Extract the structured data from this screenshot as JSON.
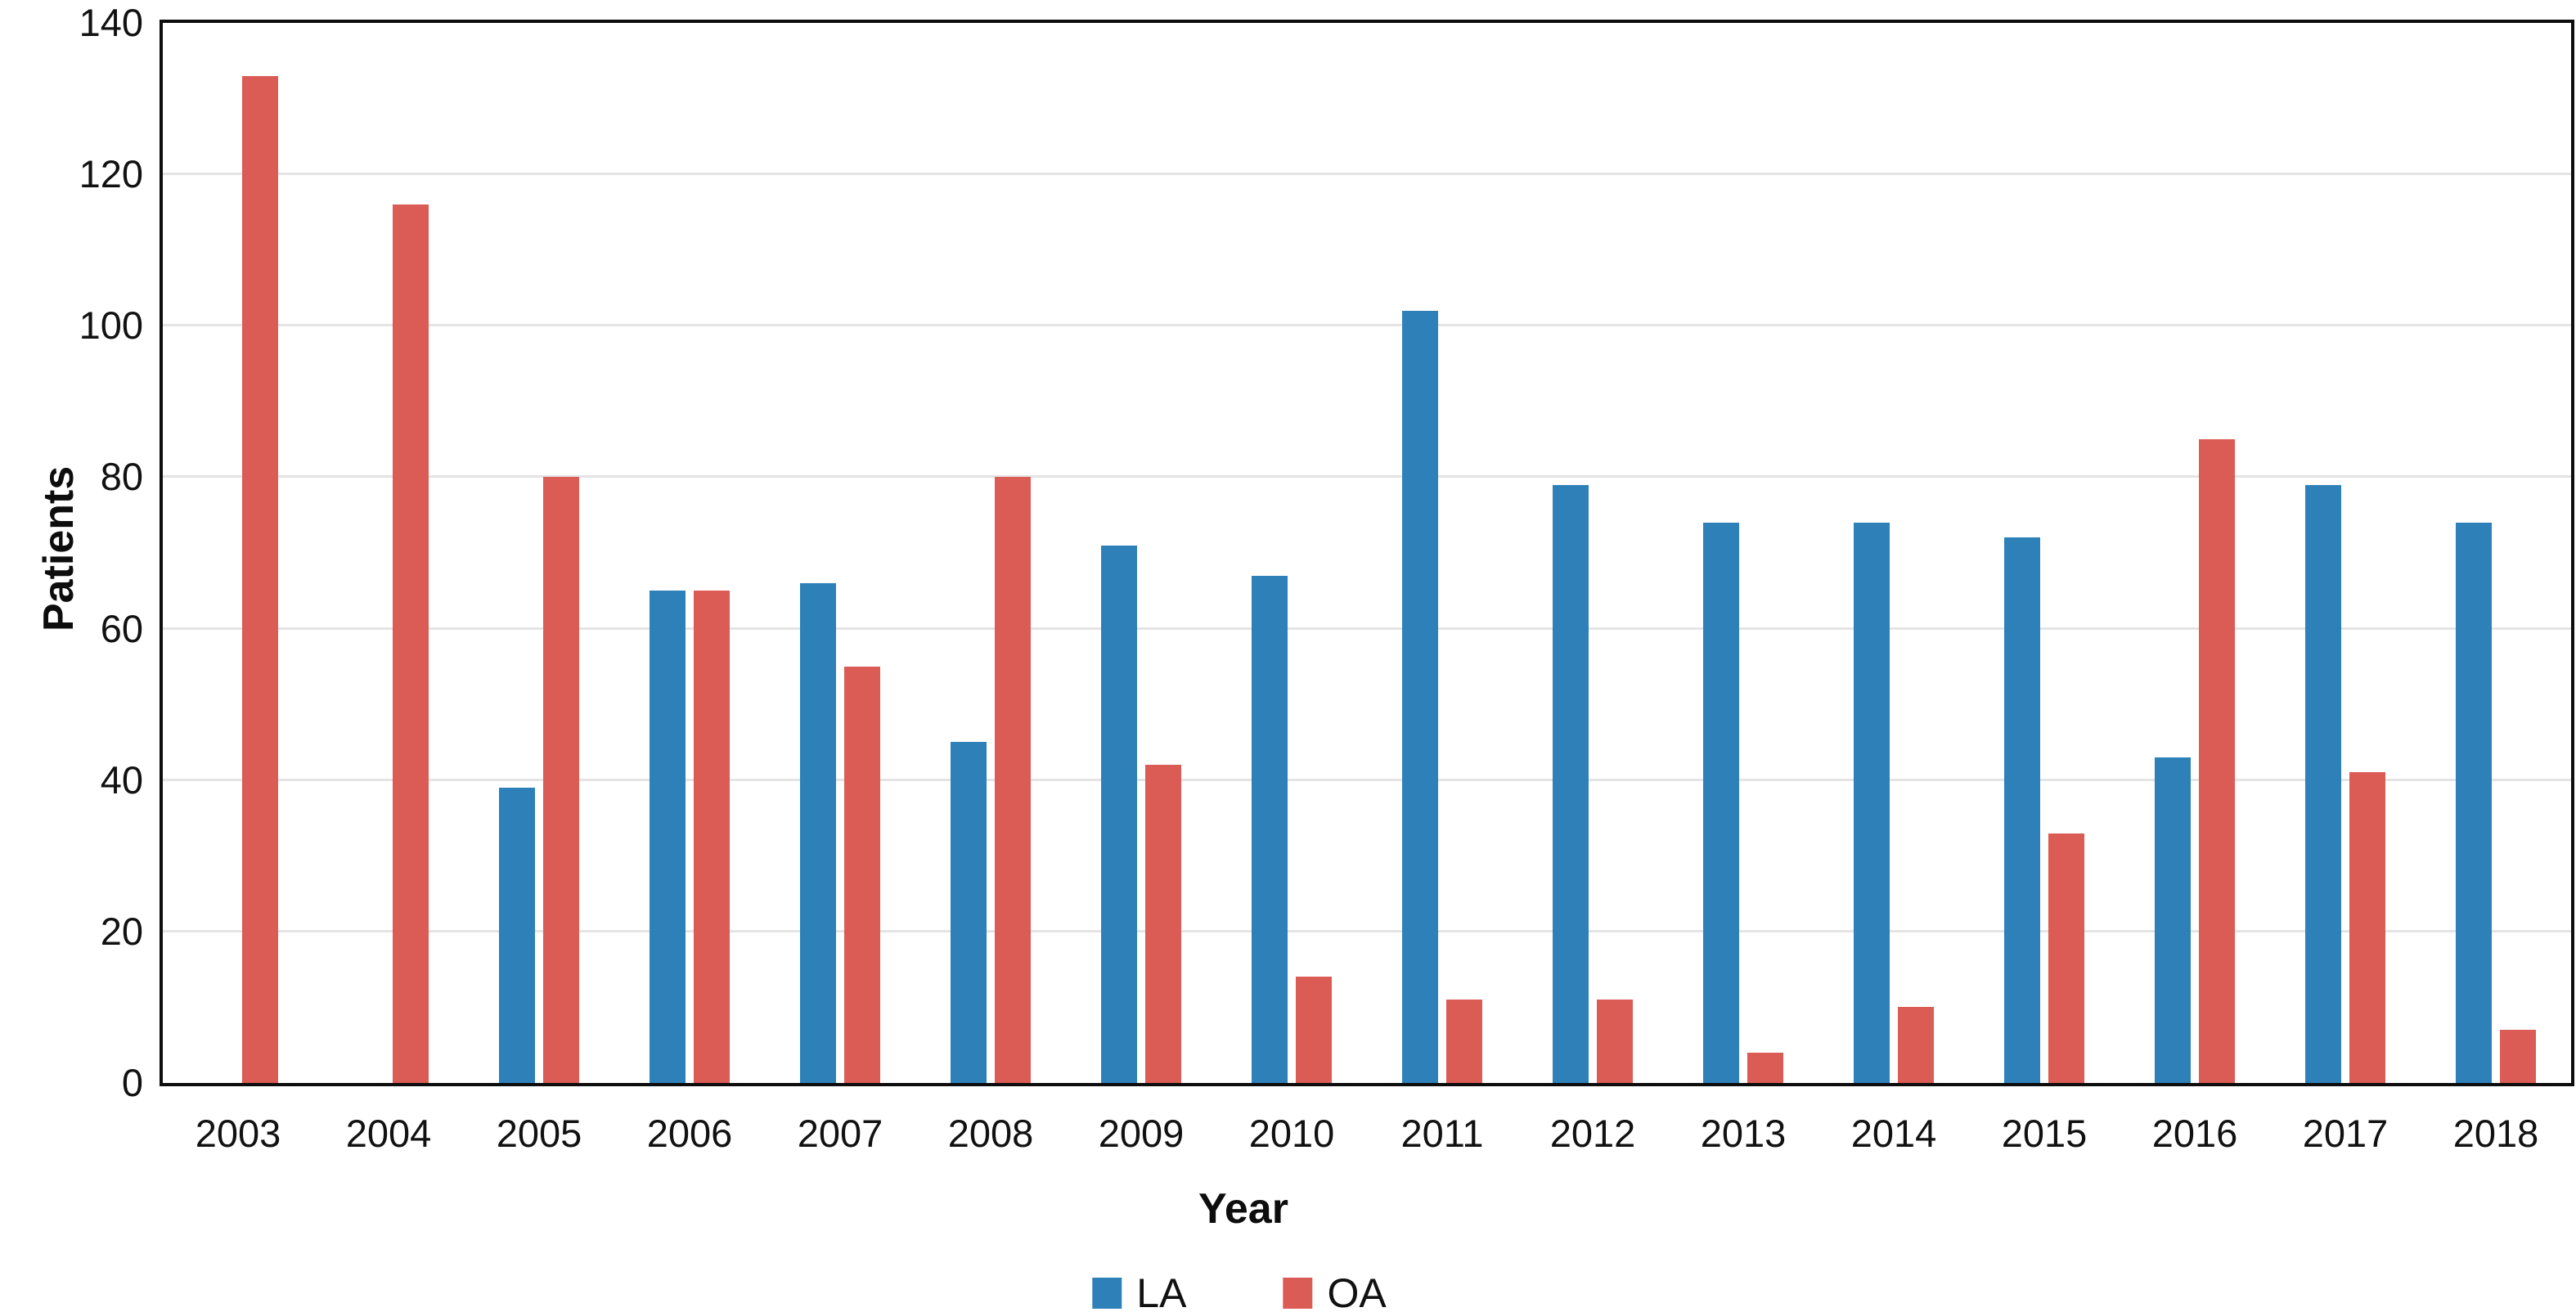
{
  "chart_data": {
    "type": "bar",
    "title": "",
    "xlabel": "Year",
    "ylabel": "Patients",
    "categories": [
      "2003",
      "2004",
      "2005",
      "2006",
      "2007",
      "2008",
      "2009",
      "2010",
      "2011",
      "2012",
      "2013",
      "2014",
      "2015",
      "2016",
      "2017",
      "2018"
    ],
    "series": [
      {
        "name": "LA",
        "color": "#2E80B8",
        "values": [
          null,
          null,
          39,
          65,
          66,
          45,
          71,
          67,
          102,
          79,
          74,
          74,
          72,
          43,
          79,
          74
        ]
      },
      {
        "name": "OA",
        "color": "#DB5B55",
        "values": [
          133,
          116,
          80,
          65,
          55,
          80,
          42,
          14,
          11,
          11,
          4,
          10,
          33,
          85,
          41,
          7
        ]
      }
    ],
    "ylim": [
      0,
      140
    ],
    "ytick_step": 20,
    "grid": "horizontal",
    "gridline_color": "#e4e4e4",
    "axis_frame_color": "#0d0d0d",
    "legend_position": "bottom-center"
  }
}
